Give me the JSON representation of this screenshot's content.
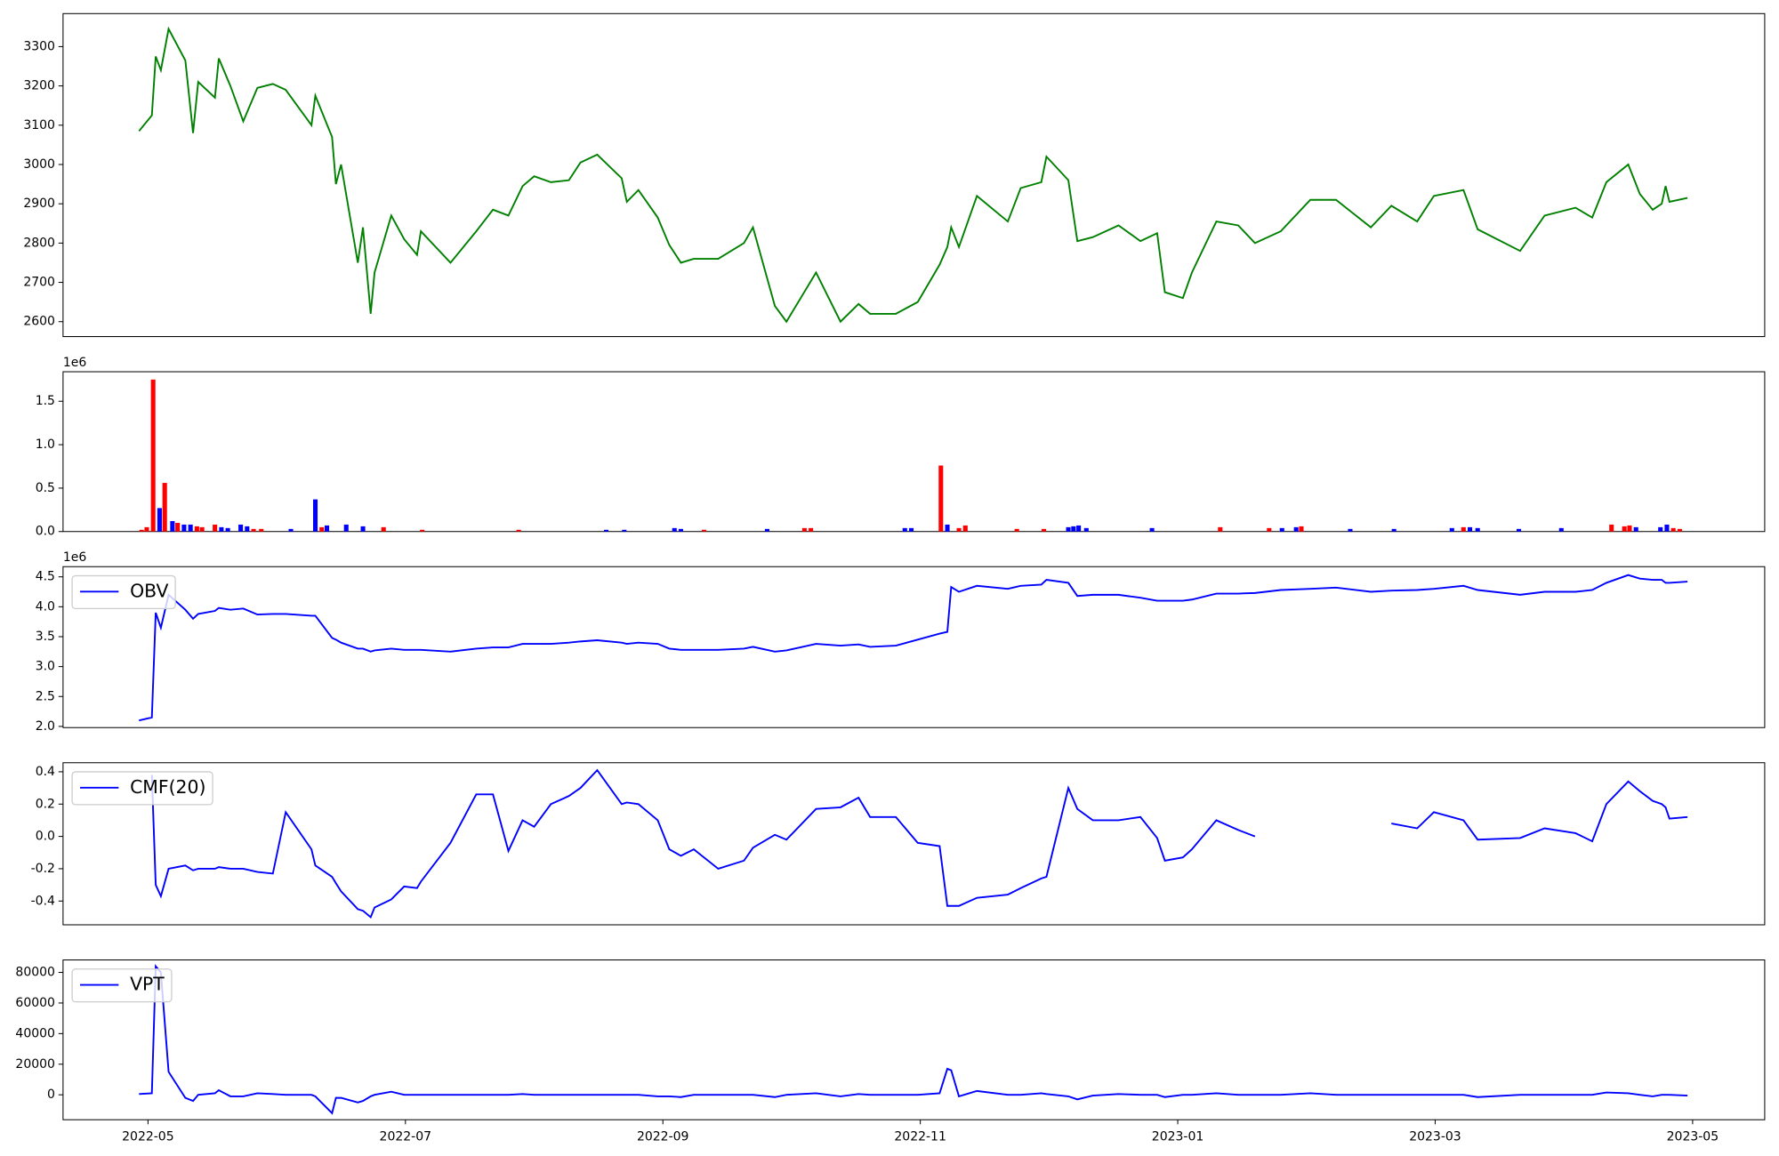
{
  "chart_data": [
    {
      "type": "line",
      "color": "green",
      "xlim": [
        -0.66,
        12.56
      ],
      "ylim": [
        2562,
        3384
      ],
      "yticks": [
        2600,
        2700,
        2800,
        2900,
        3000,
        3100,
        3200,
        3300
      ],
      "x": [
        -0.07,
        0.03,
        0.06,
        0.1,
        0.16,
        0.29,
        0.35,
        0.39,
        0.52,
        0.55,
        0.64,
        0.74,
        0.85,
        0.97,
        1.07,
        1.27,
        1.3,
        1.43,
        1.46,
        1.5,
        1.63,
        1.67,
        1.73,
        1.76,
        1.89,
        1.99,
        2.09,
        2.12,
        2.35,
        2.55,
        2.68,
        2.8,
        2.91,
        3.0,
        3.13,
        3.27,
        3.36,
        3.49,
        3.68,
        3.72,
        3.81,
        3.96,
        4.05,
        4.14,
        4.24,
        4.43,
        4.63,
        4.7,
        4.87,
        4.96,
        5.19,
        5.38,
        5.52,
        5.61,
        5.81,
        5.98,
        6.15,
        6.21,
        6.24,
        6.3,
        6.44,
        6.68,
        6.78,
        6.94,
        6.98,
        7.15,
        7.22,
        7.34,
        7.54,
        7.71,
        7.84,
        7.9,
        8.04,
        8.11,
        8.3,
        8.47,
        8.6,
        8.8,
        9.03,
        9.23,
        9.5,
        9.66,
        9.86,
        9.99,
        10.22,
        10.33,
        10.66,
        10.85,
        11.09,
        11.22,
        11.33,
        11.5,
        11.59,
        11.69,
        11.76,
        11.79,
        11.82,
        11.96
      ],
      "values": [
        3085,
        3125,
        3275,
        3240,
        3345,
        3265,
        3080,
        3210,
        3170,
        3270,
        3200,
        3110,
        3195,
        3205,
        3190,
        3100,
        3175,
        3070,
        2950,
        3000,
        2750,
        2840,
        2620,
        2725,
        2870,
        2810,
        2770,
        2830,
        2750,
        2830,
        2885,
        2870,
        2945,
        2970,
        2955,
        2960,
        3005,
        3025,
        2965,
        2905,
        2935,
        2865,
        2795,
        2750,
        2760,
        2760,
        2800,
        2840,
        2640,
        2600,
        2725,
        2600,
        2645,
        2620,
        2620,
        2650,
        2745,
        2790,
        2840,
        2790,
        2920,
        2855,
        2940,
        2955,
        3020,
        2960,
        2805,
        2815,
        2845,
        2805,
        2825,
        2675,
        2660,
        2725,
        2855,
        2845,
        2800,
        2830,
        2910,
        2910,
        2840,
        2895,
        2855,
        2920,
        2935,
        2835,
        2780,
        2870,
        2890,
        2865,
        2955,
        3000,
        2925,
        2885,
        2900,
        2945,
        2905,
        2915
      ]
    },
    {
      "type": "bar",
      "offset_text": "1e6",
      "xlim": [
        -0.66,
        12.56
      ],
      "ylim": [
        0,
        1.84
      ],
      "yticks": [
        {
          "value": 0,
          "label": "0.0"
        },
        0.5,
        {
          "value": 1,
          "label": "1.0"
        },
        1.5
      ],
      "x": [
        -0.05,
        -0.01,
        0.04,
        0.09,
        0.13,
        0.19,
        0.23,
        0.28,
        0.33,
        0.38,
        0.42,
        0.52,
        0.57,
        0.62,
        0.72,
        0.77,
        0.82,
        0.88,
        1.11,
        1.3,
        1.35,
        1.39,
        1.54,
        1.67,
        1.83,
        2.13,
        2.88,
        3.56,
        3.7,
        4.09,
        4.14,
        4.32,
        4.81,
        5.1,
        5.15,
        5.88,
        5.93,
        6.16,
        6.21,
        6.3,
        6.35,
        6.75,
        6.96,
        7.15,
        7.19,
        7.23,
        7.29,
        7.8,
        8.33,
        8.71,
        8.81,
        8.92,
        8.96,
        9.34,
        9.68,
        10.13,
        10.22,
        10.27,
        10.33,
        10.65,
        10.98,
        11.37,
        11.47,
        11.51,
        11.56,
        11.75,
        11.8,
        11.85,
        11.9
      ],
      "values": [
        0.02,
        0.05,
        1.75,
        0.27,
        0.56,
        0.12,
        0.1,
        0.08,
        0.08,
        0.06,
        0.05,
        0.08,
        0.05,
        0.04,
        0.08,
        0.06,
        0.03,
        0.03,
        0.03,
        0.37,
        0.05,
        0.07,
        0.08,
        0.06,
        0.05,
        0.02,
        0.02,
        0.02,
        0.02,
        0.04,
        0.03,
        0.02,
        0.03,
        0.04,
        0.04,
        0.04,
        0.04,
        0.76,
        0.08,
        0.04,
        0.07,
        0.03,
        0.03,
        0.05,
        0.06,
        0.07,
        0.04,
        0.04,
        0.05,
        0.04,
        0.04,
        0.05,
        0.06,
        0.03,
        0.03,
        0.04,
        0.05,
        0.05,
        0.04,
        0.03,
        0.04,
        0.08,
        0.06,
        0.07,
        0.05,
        0.05,
        0.08,
        0.04,
        0.03
      ],
      "colors": [
        "red",
        "red",
        "red",
        "blue",
        "red",
        "blue",
        "red",
        "blue",
        "blue",
        "red",
        "red",
        "red",
        "blue",
        "blue",
        "blue",
        "blue",
        "red",
        "red",
        "blue",
        "blue",
        "red",
        "blue",
        "blue",
        "blue",
        "red",
        "red",
        "red",
        "blue",
        "blue",
        "blue",
        "blue",
        "red",
        "blue",
        "red",
        "red",
        "blue",
        "blue",
        "red",
        "blue",
        "red",
        "red",
        "red",
        "red",
        "blue",
        "blue",
        "blue",
        "blue",
        "blue",
        "red",
        "red",
        "blue",
        "blue",
        "red",
        "blue",
        "blue",
        "blue",
        "red",
        "blue",
        "blue",
        "blue",
        "blue",
        "red",
        "red",
        "red",
        "blue",
        "blue",
        "blue",
        "red",
        "red"
      ]
    },
    {
      "type": "line",
      "offset_text": "1e6",
      "legend": "upper left",
      "xlim": [
        -0.66,
        12.56
      ],
      "ylim": [
        1.98,
        4.67
      ],
      "yticks": [
        {
          "value": 2,
          "label": "2.0"
        },
        2.5,
        {
          "value": 3,
          "label": "3.0"
        },
        3.5,
        {
          "value": 4,
          "label": "4.0"
        },
        4.5
      ],
      "x": [
        -0.07,
        0.03,
        0.06,
        0.1,
        0.16,
        0.29,
        0.35,
        0.39,
        0.52,
        0.55,
        0.64,
        0.74,
        0.85,
        0.97,
        1.07,
        1.27,
        1.3,
        1.43,
        1.46,
        1.5,
        1.63,
        1.67,
        1.73,
        1.76,
        1.89,
        1.99,
        2.09,
        2.12,
        2.35,
        2.55,
        2.68,
        2.8,
        2.91,
        3.0,
        3.13,
        3.27,
        3.36,
        3.49,
        3.68,
        3.72,
        3.81,
        3.96,
        4.05,
        4.14,
        4.24,
        4.43,
        4.63,
        4.7,
        4.87,
        4.96,
        5.19,
        5.38,
        5.52,
        5.61,
        5.81,
        5.98,
        6.15,
        6.21,
        6.24,
        6.3,
        6.44,
        6.68,
        6.78,
        6.94,
        6.98,
        7.15,
        7.22,
        7.34,
        7.54,
        7.71,
        7.84,
        7.9,
        8.04,
        8.11,
        8.3,
        8.47,
        8.6,
        8.8,
        9.03,
        9.23,
        9.5,
        9.66,
        9.86,
        9.99,
        10.22,
        10.33,
        10.66,
        10.85,
        11.09,
        11.22,
        11.33,
        11.5,
        11.59,
        11.69,
        11.76,
        11.79,
        11.82,
        11.96
      ],
      "series": [
        {
          "name": "OBV",
          "color": "blue",
          "values": [
            2.1,
            2.15,
            3.9,
            3.65,
            4.2,
            3.95,
            3.8,
            3.88,
            3.93,
            3.98,
            3.95,
            3.97,
            3.87,
            3.88,
            3.88,
            3.85,
            3.85,
            3.48,
            3.45,
            3.4,
            3.3,
            3.3,
            3.25,
            3.27,
            3.3,
            3.28,
            3.28,
            3.28,
            3.25,
            3.3,
            3.32,
            3.32,
            3.38,
            3.38,
            3.38,
            3.4,
            3.42,
            3.44,
            3.4,
            3.38,
            3.4,
            3.38,
            3.3,
            3.28,
            3.28,
            3.28,
            3.3,
            3.33,
            3.25,
            3.27,
            3.38,
            3.35,
            3.37,
            3.33,
            3.35,
            3.45,
            3.55,
            3.58,
            4.33,
            4.25,
            4.35,
            4.3,
            4.35,
            4.37,
            4.45,
            4.4,
            4.18,
            4.2,
            4.2,
            4.15,
            4.1,
            4.1,
            4.1,
            4.12,
            4.22,
            4.22,
            4.23,
            4.28,
            4.3,
            4.32,
            4.25,
            4.27,
            4.28,
            4.3,
            4.35,
            4.28,
            4.2,
            4.25,
            4.25,
            4.28,
            4.4,
            4.53,
            4.47,
            4.45,
            4.45,
            4.4,
            4.4,
            4.42
          ]
        }
      ]
    },
    {
      "type": "line",
      "legend": "upper left",
      "xlim": [
        -0.66,
        12.56
      ],
      "ylim": [
        -0.547,
        0.456
      ],
      "yticks": [
        -0.4,
        -0.2,
        {
          "value": 0,
          "label": "0.0"
        },
        0.2,
        0.4
      ],
      "x": [
        -0.07,
        0.03,
        0.06,
        0.1,
        0.16,
        0.29,
        0.35,
        0.39,
        0.52,
        0.55,
        0.64,
        0.74,
        0.85,
        0.97,
        1.07,
        1.27,
        1.3,
        1.43,
        1.46,
        1.5,
        1.63,
        1.67,
        1.73,
        1.76,
        1.89,
        1.99,
        2.09,
        2.12,
        2.35,
        2.55,
        2.68,
        2.8,
        2.91,
        3.0,
        3.13,
        3.27,
        3.36,
        3.49,
        3.68,
        3.72,
        3.81,
        3.96,
        4.05,
        4.14,
        4.24,
        4.43,
        4.63,
        4.7,
        4.87,
        4.96,
        5.19,
        5.38,
        5.52,
        5.61,
        5.81,
        5.98,
        6.15,
        6.21,
        6.24,
        6.3,
        6.44,
        6.68,
        6.78,
        6.94,
        6.98,
        7.15,
        7.22,
        7.34,
        7.54,
        7.71,
        7.84,
        7.9,
        8.04,
        8.11,
        8.3,
        8.47,
        8.6,
        8.8,
        9.03,
        9.23,
        9.5,
        9.66,
        9.86,
        9.99,
        10.22,
        10.33,
        10.66,
        10.85,
        11.09,
        11.22,
        11.33,
        11.5,
        11.59,
        11.69,
        11.76,
        11.79,
        11.82,
        11.96
      ],
      "series": [
        {
          "name": "CMF(20)",
          "color": "blue",
          "values": [
            null,
            0.38,
            -0.3,
            -0.37,
            -0.2,
            -0.18,
            -0.21,
            -0.2,
            -0.2,
            -0.19,
            -0.2,
            -0.2,
            -0.22,
            -0.23,
            0.15,
            -0.08,
            -0.18,
            -0.25,
            -0.29,
            -0.34,
            -0.45,
            -0.46,
            -0.5,
            -0.44,
            -0.39,
            -0.31,
            -0.32,
            -0.28,
            -0.04,
            0.26,
            0.26,
            -0.09,
            0.1,
            0.06,
            0.2,
            0.25,
            0.3,
            0.41,
            0.2,
            0.21,
            0.2,
            0.1,
            -0.08,
            -0.12,
            -0.08,
            -0.2,
            -0.15,
            -0.07,
            0.01,
            -0.02,
            0.17,
            0.18,
            0.24,
            0.12,
            0.12,
            -0.04,
            -0.06,
            -0.43,
            -0.43,
            -0.43,
            -0.38,
            -0.36,
            -0.32,
            -0.26,
            -0.25,
            0.3,
            0.17,
            0.1,
            0.1,
            0.12,
            -0.01,
            -0.15,
            -0.13,
            -0.08,
            0.1,
            0.04,
            0.0,
            null,
            null,
            null,
            null,
            0.08,
            0.05,
            0.15,
            0.1,
            -0.02,
            -0.01,
            0.05,
            0.02,
            -0.03,
            0.2,
            0.34,
            0.28,
            0.22,
            0.2,
            0.18,
            0.11,
            0.12
          ]
        }
      ]
    },
    {
      "type": "line",
      "legend": "upper left",
      "xlim": [
        -0.66,
        12.56
      ],
      "ylim": [
        -16300,
        88150
      ],
      "yticks": [
        0,
        20000,
        40000,
        60000,
        80000
      ],
      "xticks": [
        {
          "value": 0,
          "label": "2022-05"
        },
        {
          "value": 2,
          "label": "2022-07"
        },
        {
          "value": 4,
          "label": "2022-09"
        },
        {
          "value": 6,
          "label": "2022-11"
        },
        {
          "value": 8,
          "label": "2023-01"
        },
        {
          "value": 10,
          "label": "2023-03"
        },
        {
          "value": 12,
          "label": "2023-05"
        }
      ],
      "x": [
        -0.07,
        0.03,
        0.06,
        0.1,
        0.16,
        0.29,
        0.35,
        0.39,
        0.52,
        0.55,
        0.64,
        0.74,
        0.85,
        0.97,
        1.07,
        1.27,
        1.3,
        1.43,
        1.46,
        1.5,
        1.63,
        1.67,
        1.73,
        1.76,
        1.89,
        1.99,
        2.09,
        2.12,
        2.35,
        2.55,
        2.68,
        2.8,
        2.91,
        3.0,
        3.13,
        3.27,
        3.36,
        3.49,
        3.68,
        3.72,
        3.81,
        3.96,
        4.05,
        4.14,
        4.24,
        4.43,
        4.63,
        4.7,
        4.87,
        4.96,
        5.19,
        5.38,
        5.52,
        5.61,
        5.81,
        5.98,
        6.15,
        6.21,
        6.24,
        6.3,
        6.44,
        6.68,
        6.78,
        6.94,
        6.98,
        7.15,
        7.22,
        7.34,
        7.54,
        7.71,
        7.84,
        7.9,
        8.04,
        8.11,
        8.3,
        8.47,
        8.6,
        8.8,
        9.03,
        9.23,
        9.5,
        9.66,
        9.86,
        9.99,
        10.22,
        10.33,
        10.66,
        10.85,
        11.09,
        11.22,
        11.33,
        11.5,
        11.59,
        11.69,
        11.76,
        11.79,
        11.82,
        11.96
      ],
      "series": [
        {
          "name": "VPT",
          "color": "blue",
          "values": [
            500,
            1000,
            84000,
            80000,
            15000,
            -2000,
            -4000,
            0,
            1000,
            3000,
            -1000,
            -1000,
            1000,
            500,
            0,
            0,
            -1000,
            -12000,
            -2000,
            -2000,
            -5000,
            -4000,
            -1000,
            0,
            2000,
            0,
            0,
            0,
            0,
            0,
            0,
            0,
            500,
            0,
            0,
            0,
            0,
            0,
            0,
            0,
            0,
            -1000,
            -1000,
            -1500,
            0,
            0,
            0,
            0,
            -1500,
            0,
            1000,
            -1000,
            500,
            0,
            0,
            0,
            1000,
            17000,
            16000,
            -1000,
            2500,
            0,
            0,
            1000,
            500,
            -1000,
            -3000,
            -500,
            500,
            0,
            0,
            -1500,
            0,
            0,
            1000,
            0,
            0,
            0,
            1000,
            0,
            0,
            0,
            0,
            0,
            0,
            -1500,
            0,
            0,
            0,
            0,
            1500,
            1000,
            0,
            -1000,
            0,
            0,
            0,
            -500
          ]
        }
      ]
    }
  ]
}
